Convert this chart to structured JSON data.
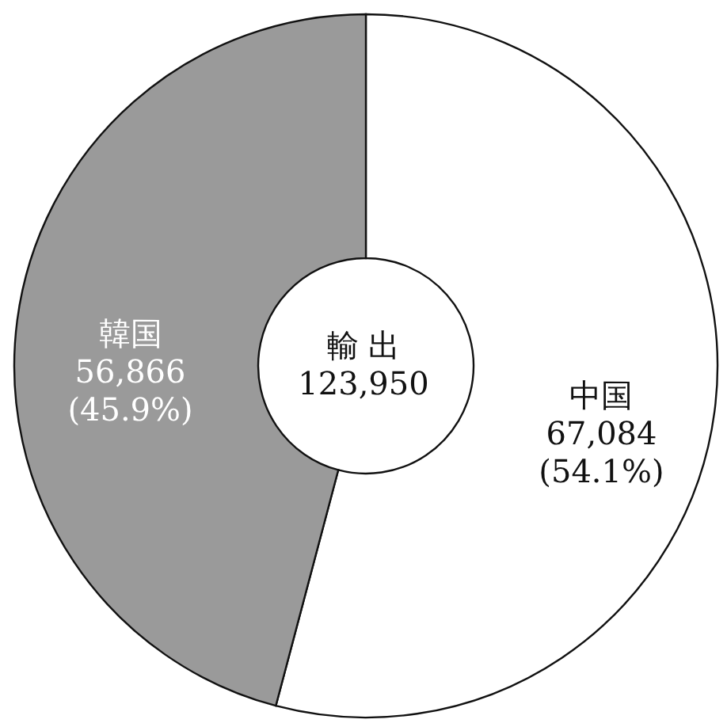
{
  "chart_data": {
    "type": "donut",
    "title": "輸 出",
    "annotations": [
      "123,950"
    ],
    "categories": [
      "中国",
      "韓国"
    ],
    "values": [
      67084,
      56866
    ],
    "value_labels": [
      "67,084\n(54.1%)",
      "56,866\n(45.9%)"
    ],
    "colors": [
      "#ffffff",
      "#9a9a9a"
    ],
    "legend": false
  }
}
